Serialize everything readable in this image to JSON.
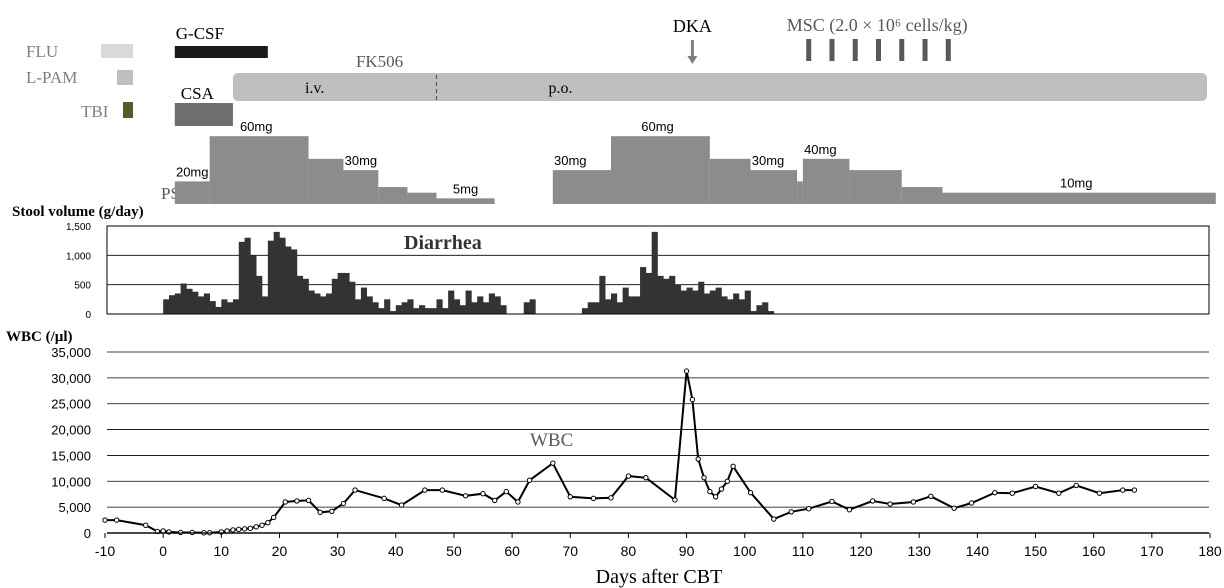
{
  "chart_data": {
    "type": "bar",
    "x_axis": {
      "label": "Days after CBT",
      "range": [
        -10,
        180
      ],
      "ticks": [
        -10,
        0,
        10,
        20,
        30,
        40,
        50,
        60,
        70,
        80,
        90,
        100,
        110,
        120,
        130,
        140,
        150,
        160,
        170,
        180
      ]
    },
    "treatments": {
      "labels": {
        "flu": "FLU",
        "lpam": "L-PAM",
        "tbi": "TBI",
        "gcsf": "G-CSF",
        "fk506": "FK506",
        "csa": "CSA",
        "iv": "i.v.",
        "po": "p.o.",
        "psl": "PSL",
        "dka": "DKA",
        "msc": "MSC (2.0 × 10⁶ cells/kg)"
      },
      "colors": {
        "flu": "#d9d9d9",
        "lpam": "#bfbfbf",
        "tbi": "#595b26",
        "gcsf": "#1a1a1a",
        "fk506": "#bfbfbf",
        "csa": "#6e6e6e",
        "psl": "#8c8c8c",
        "msc": "#595959",
        "dka": "#7f7f7f"
      },
      "gcsf_days": [
        2,
        18
      ],
      "fk506_days": [
        12,
        181
      ],
      "fk506_iv_to_po_day": 47,
      "csa_days": [
        2,
        12
      ],
      "dka_day": 91,
      "msc_days": [
        111,
        115,
        119,
        123,
        127,
        131,
        135
      ],
      "psl_segments": [
        {
          "start": 2,
          "end": 8,
          "level": 20
        },
        {
          "start": 8,
          "end": 25,
          "level": 60
        },
        {
          "start": 25,
          "end": 31,
          "level": 40
        },
        {
          "start": 31,
          "end": 37,
          "level": 30
        },
        {
          "start": 37,
          "end": 42,
          "level": 15
        },
        {
          "start": 42,
          "end": 47,
          "level": 10
        },
        {
          "start": 47,
          "end": 57,
          "level": 5
        },
        {
          "start": 67,
          "end": 77,
          "level": 30
        },
        {
          "start": 77,
          "end": 94,
          "level": 60
        },
        {
          "start": 94,
          "end": 101,
          "level": 40
        },
        {
          "start": 101,
          "end": 109,
          "level": 30
        },
        {
          "start": 109,
          "end": 110,
          "level": 20
        },
        {
          "start": 110,
          "end": 118,
          "level": 40
        },
        {
          "start": 118,
          "end": 127,
          "level": 30
        },
        {
          "start": 127,
          "end": 134,
          "level": 15
        },
        {
          "start": 134,
          "end": 181,
          "level": 10
        }
      ],
      "psl_dose_labels": [
        {
          "text": "20mg",
          "day": 5
        },
        {
          "text": "60mg",
          "day": 16
        },
        {
          "text": "30mg",
          "day": 34
        },
        {
          "text": "5mg",
          "day": 52
        },
        {
          "text": "30mg",
          "day": 70
        },
        {
          "text": "60mg",
          "day": 85
        },
        {
          "text": "30mg",
          "day": 104
        },
        {
          "text": "40mg",
          "day": 113
        },
        {
          "text": "10mg",
          "day": 157
        }
      ]
    },
    "stool": {
      "title": "Stool volume (g/day)",
      "annotation": "Diarrhea",
      "ylim": [
        0,
        1500
      ],
      "yticks": [
        0,
        500,
        1000,
        1500
      ],
      "ytick_labels": [
        "0",
        "500",
        "1,000",
        "1,500"
      ],
      "days": [
        0,
        1,
        2,
        3,
        4,
        5,
        6,
        7,
        8,
        9,
        10,
        11,
        12,
        13,
        14,
        15,
        16,
        17,
        18,
        19,
        20,
        21,
        22,
        23,
        24,
        25,
        26,
        27,
        28,
        29,
        30,
        31,
        32,
        33,
        34,
        35,
        36,
        37,
        38,
        39,
        40,
        41,
        42,
        43,
        44,
        45,
        46,
        47,
        48,
        49,
        50,
        51,
        52,
        53,
        54,
        55,
        56,
        57,
        58,
        59,
        60,
        61,
        62,
        63,
        64,
        65,
        66,
        67,
        68,
        69,
        70,
        71,
        72,
        73,
        74,
        75,
        76,
        77,
        78,
        79,
        80,
        81,
        82,
        83,
        84,
        85,
        86,
        87,
        88,
        89,
        90,
        91,
        92,
        93,
        94,
        95,
        96,
        97,
        98,
        99,
        100,
        101,
        102,
        103,
        104,
        105,
        106,
        107,
        108,
        109,
        110,
        111,
        112,
        113,
        114,
        115,
        116,
        117,
        118,
        119,
        120,
        121,
        122,
        123,
        124,
        125,
        126,
        127,
        128,
        129,
        130,
        131,
        132
      ],
      "values": [
        250,
        320,
        350,
        520,
        430,
        380,
        300,
        350,
        220,
        120,
        250,
        200,
        250,
        1230,
        1300,
        1000,
        650,
        300,
        1250,
        1400,
        1300,
        1150,
        1100,
        650,
        600,
        400,
        350,
        300,
        350,
        600,
        700,
        700,
        550,
        250,
        450,
        300,
        200,
        100,
        250,
        50,
        150,
        200,
        250,
        100,
        150,
        100,
        100,
        250,
        100,
        400,
        250,
        150,
        400,
        200,
        300,
        200,
        350,
        300,
        150,
        0,
        0,
        0,
        200,
        250,
        0,
        0,
        0,
        0,
        0,
        0,
        0,
        0,
        100,
        200,
        200,
        650,
        250,
        350,
        200,
        450,
        300,
        300,
        800,
        700,
        1400,
        650,
        600,
        650,
        500,
        400,
        450,
        400,
        550,
        350,
        400,
        450,
        300,
        250,
        350,
        250,
        400,
        50,
        150,
        200,
        50,
        0,
        0,
        0,
        0,
        0,
        0,
        0,
        0,
        0,
        0,
        0,
        0,
        0,
        0,
        0,
        0,
        0,
        0,
        0,
        0,
        0,
        0,
        0,
        0,
        0,
        0,
        0,
        0
      ]
    },
    "wbc": {
      "title": "WBC (/µl)",
      "annotation": "WBC",
      "ylim": [
        0,
        35000
      ],
      "yticks": [
        0,
        5000,
        10000,
        15000,
        20000,
        25000,
        30000,
        35000
      ],
      "ytick_labels": [
        "0",
        "5,000",
        "10,000",
        "15,000",
        "20,000",
        "25,000",
        "30,000",
        "35,000"
      ],
      "x": [
        -10,
        -8,
        -3,
        -1,
        0,
        1,
        3,
        5,
        7,
        8,
        10,
        11,
        12,
        13,
        14,
        15,
        16,
        17,
        18,
        19,
        21,
        23,
        25,
        27,
        29,
        31,
        33,
        38,
        41,
        45,
        48,
        52,
        55,
        57,
        59,
        61,
        63,
        67,
        70,
        74,
        77,
        80,
        83,
        88,
        90,
        91,
        92,
        93,
        94,
        95,
        96,
        97,
        98,
        101,
        105,
        108,
        111,
        115,
        118,
        122,
        125,
        129,
        132,
        136,
        139,
        143,
        146,
        150,
        154,
        157,
        161,
        165,
        167
      ],
      "y": [
        2500,
        2500,
        1500,
        300,
        400,
        200,
        100,
        100,
        50,
        50,
        200,
        400,
        600,
        700,
        800,
        900,
        1200,
        1500,
        2000,
        3000,
        6000,
        6200,
        6300,
        4000,
        4200,
        5700,
        8300,
        6700,
        5400,
        8300,
        8300,
        7200,
        7600,
        6300,
        8000,
        6000,
        10200,
        13500,
        7000,
        6700,
        6800,
        11000,
        10700,
        6400,
        31300,
        25800,
        14300,
        10700,
        8000,
        7000,
        8500,
        10000,
        12900,
        7800,
        2700,
        4100,
        4700,
        6100,
        4500,
        6200,
        5600,
        6000,
        7100,
        4800,
        5800,
        7800,
        7700,
        9000,
        7700,
        9200,
        7700,
        8300,
        8300
      ]
    }
  }
}
